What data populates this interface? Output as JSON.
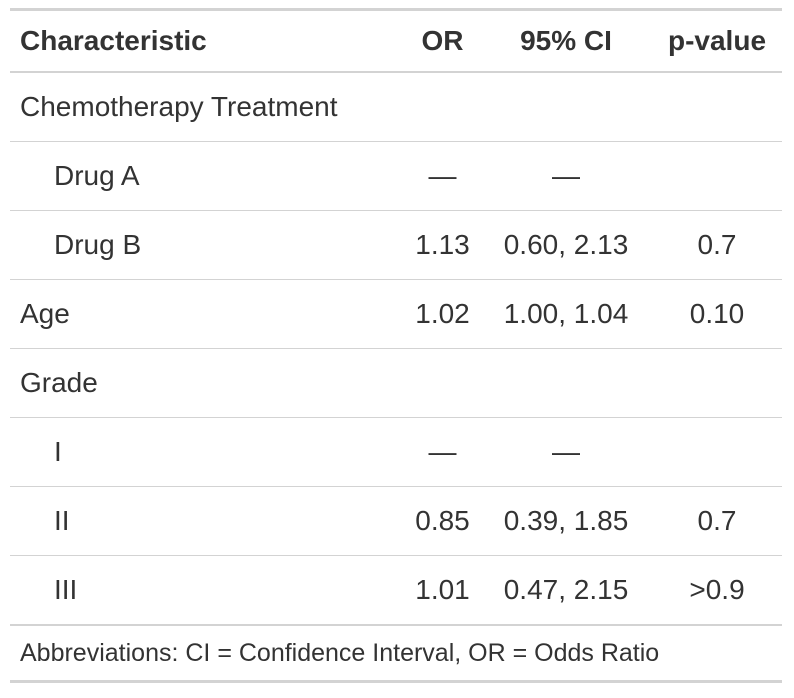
{
  "table": {
    "header": [
      "Characteristic",
      "OR",
      "95% CI",
      "p-value"
    ],
    "rows": [
      {
        "label": "Chemotherapy Treatment"
      },
      {
        "label": "Drug A",
        "indent": true,
        "or": "—",
        "ci": "—"
      },
      {
        "label": "Drug B",
        "indent": true,
        "or": "1.13",
        "ci": "0.60, 2.13",
        "p": "0.7"
      },
      {
        "label": "Age",
        "or": "1.02",
        "ci": "1.00, 1.04",
        "p": "0.10"
      },
      {
        "label": "Grade"
      },
      {
        "label": "I",
        "indent": true,
        "or": "—",
        "ci": "—"
      },
      {
        "label": "II",
        "indent": true,
        "or": "0.85",
        "ci": "0.39, 1.85",
        "p": "0.7"
      },
      {
        "label": "III",
        "indent": true,
        "or": "1.01",
        "ci": "0.47, 2.15",
        "p": ">0.9"
      }
    ],
    "footnote": "Abbreviations: CI = Confidence Interval, OR = Odds Ratio"
  }
}
